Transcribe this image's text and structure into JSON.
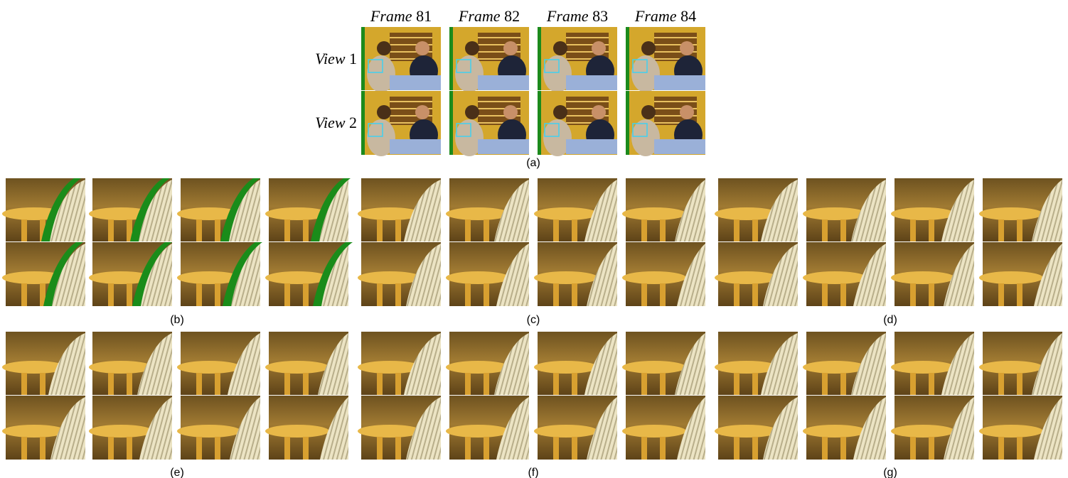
{
  "header": {
    "columns": [
      {
        "word": "Frame",
        "number": "81"
      },
      {
        "word": "Frame",
        "number": "82"
      },
      {
        "word": "Frame",
        "number": "83"
      },
      {
        "word": "Frame",
        "number": "84"
      }
    ],
    "rows": [
      {
        "word": "View",
        "number": "1"
      },
      {
        "word": "View",
        "number": "2"
      }
    ]
  },
  "captions": [
    "(a)",
    "(b)",
    "(c)",
    "(d)",
    "(e)",
    "(f)",
    "(g)"
  ]
}
